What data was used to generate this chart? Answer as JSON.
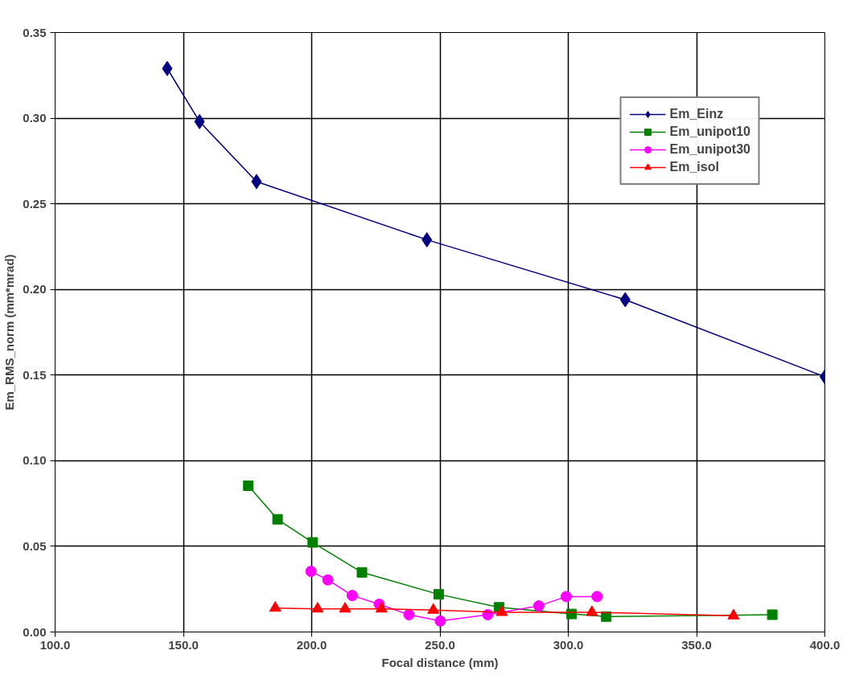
{
  "chart_data": {
    "type": "line",
    "xlabel": "Focal distance (mm)",
    "ylabel": "Em_RMS_norm (mm*mrad)",
    "xlim": [
      100,
      400
    ],
    "ylim": [
      0,
      0.35
    ],
    "xticks": [
      {
        "value": 100,
        "label": "100.0"
      },
      {
        "value": 150,
        "label": "150.0"
      },
      {
        "value": 200,
        "label": "200.0"
      },
      {
        "value": 250,
        "label": "250.0"
      },
      {
        "value": 300,
        "label": "300.0"
      },
      {
        "value": 350,
        "label": "350.0"
      },
      {
        "value": 400,
        "label": "400.0"
      }
    ],
    "yticks": [
      {
        "value": 0,
        "label": "0.00"
      },
      {
        "value": 0.05,
        "label": "0.05"
      },
      {
        "value": 0.1,
        "label": "0.10"
      },
      {
        "value": 0.15,
        "label": "0.15"
      },
      {
        "value": 0.2,
        "label": "0.20"
      },
      {
        "value": 0.25,
        "label": "0.25"
      },
      {
        "value": 0.3,
        "label": "0.30"
      },
      {
        "value": 0.35,
        "label": "0.35"
      }
    ],
    "grid": true,
    "legend": "top right",
    "line_style": "solid",
    "series": [
      {
        "name": "Em_Einz",
        "color": "#000080",
        "marker": "diamond",
        "x": [
          143.7,
          156.3,
          178.5,
          244.9,
          322.2,
          400
        ],
        "values": [
          0.329,
          0.298,
          0.263,
          0.229,
          0.194,
          0.149
        ]
      },
      {
        "name": "Em_unipot10",
        "color": "#008000",
        "marker": "square",
        "x": [
          175.3,
          186.7,
          200.4,
          219.6,
          249.5,
          273.0,
          301.3,
          314.8,
          379.5
        ],
        "values": [
          0.0854,
          0.0658,
          0.0523,
          0.0348,
          0.022,
          0.0144,
          0.0105,
          0.009,
          0.0101
        ]
      },
      {
        "name": "Em_unipot30",
        "color": "#ff00ff",
        "marker": "circle",
        "x": [
          199.7,
          206.3,
          215.8,
          226.3,
          237.9,
          250.1,
          268.6,
          288.5,
          299.2,
          311.2
        ],
        "values": [
          0.0354,
          0.0304,
          0.0213,
          0.0162,
          0.0101,
          0.0064,
          0.0101,
          0.0152,
          0.0207,
          0.0207
        ]
      },
      {
        "name": "Em_isol",
        "color": "#ff0000",
        "marker": "triangle",
        "x": [
          185.8,
          202.3,
          213.0,
          227.2,
          247.4,
          274.1,
          309.2,
          364.4
        ],
        "values": [
          0.014,
          0.0135,
          0.0135,
          0.0135,
          0.0128,
          0.0115,
          0.0115,
          0.0095
        ]
      }
    ]
  }
}
